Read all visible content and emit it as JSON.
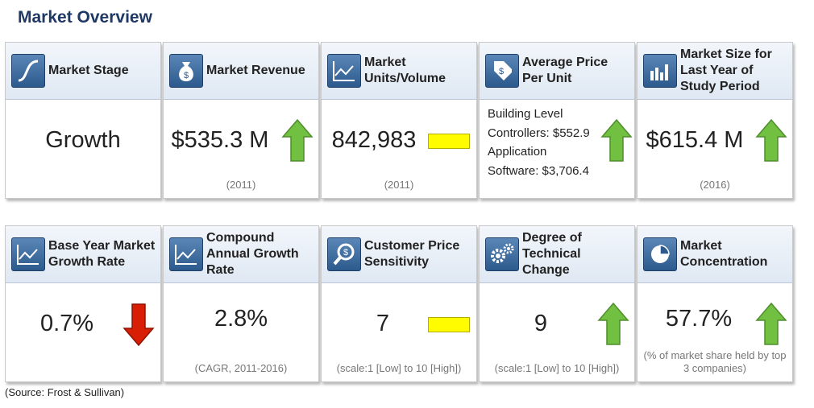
{
  "title": "Market Overview",
  "source": "(Source: Frost & Sullivan)",
  "colors": {
    "title": "#1f3864",
    "up_arrow": "#72c042",
    "down_arrow": "#d81e05",
    "neutral_box": "#fffc00"
  },
  "row1": [
    {
      "label": "Market Stage",
      "icon": "s-curve-icon",
      "value": "Growth",
      "note": "",
      "indicator": "none"
    },
    {
      "label": "Market Revenue",
      "icon": "money-bag-icon",
      "value": "$535.3 M",
      "note": "(2011)",
      "indicator": "up"
    },
    {
      "label": "Market Units/Volume",
      "icon": "line-chart-icon",
      "value": "842,983",
      "note": "(2011)",
      "indicator": "neutral"
    },
    {
      "label": "Average Price Per Unit",
      "icon": "price-tag-icon",
      "lines": [
        "Building Level",
        "Controllers: $552.9",
        "Application",
        "Software: $3,706.4"
      ],
      "indicator": "up"
    },
    {
      "label": "Market Size for Last Year of Study Period",
      "icon": "bar-chart-icon",
      "value": "$615.4 M",
      "note": "(2016)",
      "indicator": "up"
    }
  ],
  "row2": [
    {
      "label": "Base Year Market Growth Rate",
      "icon": "line-chart-icon",
      "value": "0.7%",
      "note": "",
      "indicator": "down"
    },
    {
      "label": "Compound Annual Growth Rate",
      "icon": "line-chart-icon",
      "value": "2.8%",
      "note": "(CAGR, 2011-2016)",
      "indicator": "none"
    },
    {
      "label": "Customer Price Sensitivity",
      "icon": "magnifier-dollar-icon",
      "value": "7",
      "note": "(scale:1 [Low] to 10 [High])",
      "indicator": "neutral"
    },
    {
      "label": "Degree of Technical Change",
      "icon": "gears-icon",
      "value": "9",
      "note": "(scale:1 [Low] to 10 [High])",
      "indicator": "up"
    },
    {
      "label": "Market Concentration",
      "icon": "pie-chart-icon",
      "value": "57.7%",
      "note": "(% of market share held by top 3 companies)",
      "indicator": "up"
    }
  ]
}
